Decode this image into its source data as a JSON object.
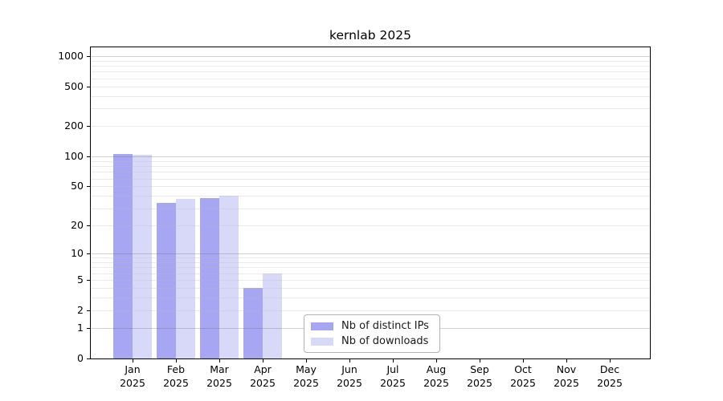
{
  "figure": {
    "title": "kernlab 2025"
  },
  "chart_data": {
    "type": "bar",
    "title": "kernlab 2025",
    "months": [
      "Jan",
      "Feb",
      "Mar",
      "Apr",
      "May",
      "Jun",
      "Jul",
      "Aug",
      "Sep",
      "Oct",
      "Nov",
      "Dec"
    ],
    "year": "2025",
    "series": [
      {
        "name": "Nb of distinct IPs",
        "color": "#a6a6f2",
        "values": [
          105,
          34,
          38,
          4,
          0,
          0,
          0,
          0,
          0,
          0,
          0,
          0
        ]
      },
      {
        "name": "Nb of downloads",
        "color": "#d8d8f8",
        "values": [
          104,
          37,
          40,
          6,
          0,
          0,
          0,
          0,
          0,
          0,
          0,
          0
        ]
      }
    ],
    "yaxis": {
      "scale": "log1p",
      "ticks": [
        0,
        1,
        2,
        5,
        10,
        20,
        50,
        100,
        200,
        500,
        1000
      ],
      "tick_labels": [
        "0",
        "1",
        "2",
        "5",
        "10",
        "20",
        "50",
        "100",
        "200",
        "500",
        "1000"
      ],
      "major_gridlines": [
        1,
        10,
        100,
        1000
      ],
      "minor_gridlines": [
        2,
        3,
        4,
        5,
        6,
        7,
        8,
        9,
        20,
        30,
        40,
        50,
        60,
        70,
        80,
        90,
        200,
        300,
        400,
        500,
        600,
        700,
        800,
        900
      ],
      "range_top_value": 1200
    },
    "grid": true,
    "legend_position": "lower center",
    "legend_entries": [
      "Nb of distinct IPs",
      "Nb of downloads"
    ]
  },
  "colors": {
    "bar_distinct_ips": "#a6a6f2",
    "bar_downloads": "#d8d8f8",
    "axis": "#000000",
    "text": "#000000",
    "legend_border": "#b4b4b4"
  }
}
